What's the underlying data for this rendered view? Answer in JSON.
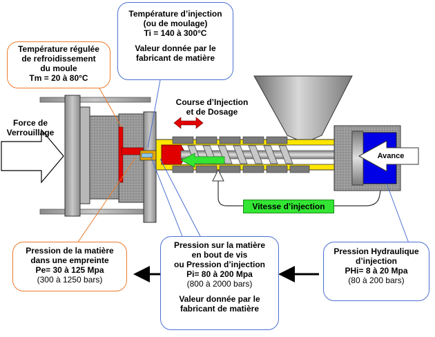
{
  "labels": {
    "force_verrouillage": [
      "Force de",
      "Verrouillage"
    ],
    "course_injection": [
      "Course d’Injection",
      "et de Dosage"
    ],
    "vitesse_injection": "Vitesse d’injection",
    "avance": "Avance"
  },
  "callouts": {
    "temperature_moule": {
      "lines": [
        "Température régulée",
        "de refroidissement",
        "du moule",
        "Tm = 20 à 80°C"
      ]
    },
    "temperature_injection": {
      "lines_top": [
        "Température d’injection",
        "(ou de moulage)",
        "Ti = 140 à 300°C"
      ],
      "lines_bottom": [
        "Valeur donnée par le",
        "fabricant de matière"
      ]
    },
    "pression_empreinte": {
      "lines": [
        "Pression de la matière",
        "dans une empreinte",
        "Pe= 30 à 125 Mpa"
      ],
      "note": "(300 à 1250 bars)"
    },
    "pression_bout_vis": {
      "lines": [
        "Pression sur la matière",
        "en bout de vis",
        "ou Pression d’injection",
        "Pi= 80 à 200 Mpa"
      ],
      "note": "(800 à 2000 bars)",
      "lines_bottom": [
        "Valeur donnée par le",
        "fabricant de matière"
      ]
    },
    "pression_hydraulique": {
      "lines": [
        "Pression Hydraulique",
        "d’injection",
        "PHi= 8 à 20 Mpa"
      ],
      "note": "(80 à 200 bars)"
    }
  },
  "colors": {
    "callout_border_blue": "#4a6fd0",
    "callout_border_orange": "#ec7a2a",
    "mold_red": "#e00000",
    "barrel_yellow": "#ffe600",
    "green_arrow": "#33e633",
    "hydraulic_blue": "#0000e6",
    "machine_grey": "#a0a0a0"
  }
}
